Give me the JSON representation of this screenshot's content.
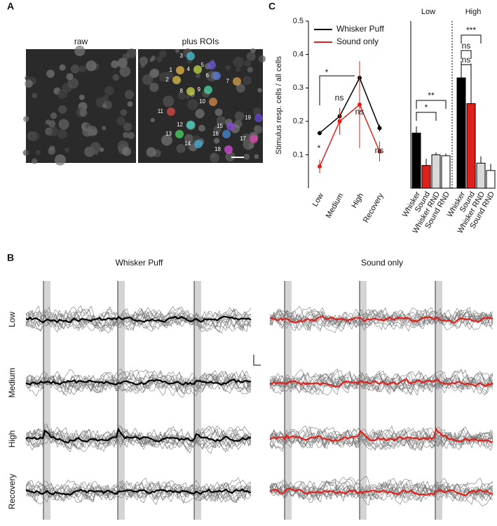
{
  "panel_labels": [
    "A",
    "B",
    "C"
  ],
  "panel_a": {
    "titles": [
      "raw",
      "plus ROIs"
    ],
    "roi_labels": [
      "1",
      "2",
      "3",
      "4",
      "5",
      "6",
      "7",
      "8",
      "9",
      "10",
      "11",
      "12",
      "13",
      "14",
      "15",
      "16",
      "17",
      "18",
      "19"
    ]
  },
  "panel_b": {
    "titles": [
      "Whisker Puff",
      "Sound only"
    ],
    "rows": [
      "Low",
      "Medium",
      "High",
      "Recovery"
    ]
  },
  "chart_data": [
    {
      "type": "line",
      "y_label": "Stimulus resp. cells / all cells",
      "categories": [
        "Low",
        "Medium",
        "High",
        "Recovery"
      ],
      "series": [
        {
          "name": "Whisker Puff",
          "color": "#000000",
          "values": [
            0.165,
            0.215,
            0.33,
            0.18
          ],
          "errors": [
            0,
            0.02,
            0.05,
            0.01
          ]
        },
        {
          "name": "Sound only",
          "color": "#e0201b",
          "values": [
            0.065,
            0.2,
            0.25,
            0.11
          ],
          "errors": [
            0.02,
            0.04,
            0.13,
            0.03
          ]
        }
      ],
      "ylim": [
        0,
        0.5
      ],
      "yticks": [
        0.1,
        0.2,
        0.3,
        0.4,
        0.5
      ],
      "annotations": [
        "*",
        "ns",
        "ns",
        "ns",
        "*"
      ]
    },
    {
      "type": "bar",
      "groups": [
        "Low",
        "High"
      ],
      "categories": [
        "Whisker",
        "Sound",
        "Whisker RND",
        "Sound RND",
        "Whisker",
        "Sound",
        "Whisker RND",
        "Sound RND"
      ],
      "values": [
        0.165,
        0.068,
        0.1,
        0.097,
        0.33,
        0.253,
        0.075,
        0.053
      ],
      "errors": [
        0.02,
        0.02,
        0.007,
        0.007,
        0.05,
        0.12,
        0.02,
        0.02
      ],
      "colors": [
        "#000000",
        "#e0201b",
        "#d9d9d9",
        "#ffffff",
        "#000000",
        "#e0201b",
        "#d9d9d9",
        "#ffffff"
      ],
      "ylim": [
        0,
        0.5
      ],
      "annotations": [
        "*",
        "**",
        "ns",
        "ns",
        "***"
      ]
    }
  ]
}
